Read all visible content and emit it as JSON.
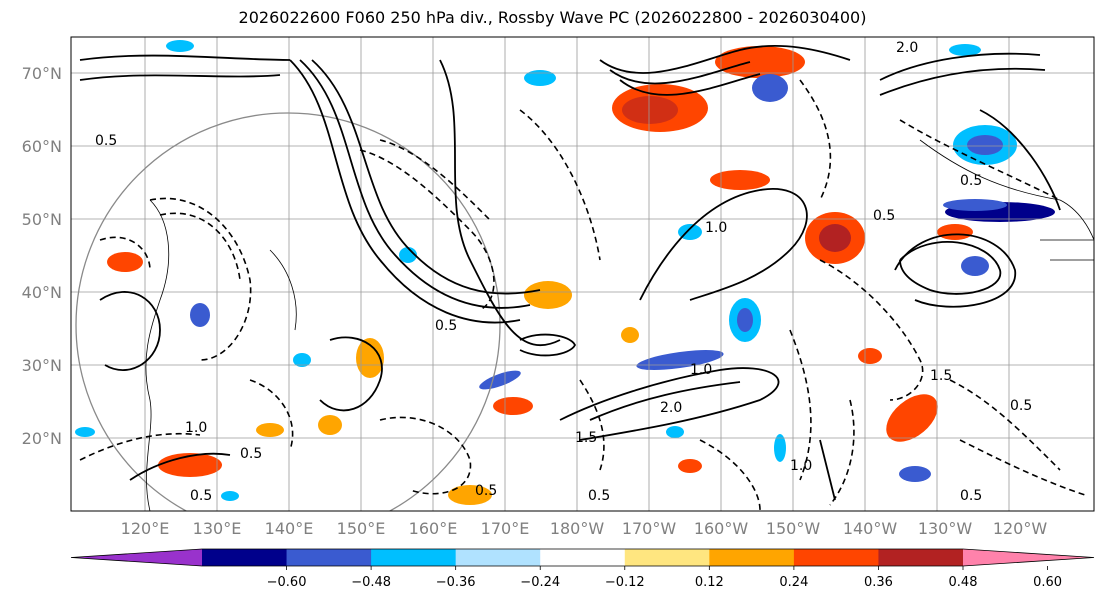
{
  "title": "2026022600 F060 250 hPa div., Rossby Wave PC (2026022800 - 2026030400)",
  "map": {
    "lat_labels": [
      "70°N",
      "60°N",
      "50°N",
      "40°N",
      "30°N",
      "20°N"
    ],
    "lon_labels": [
      "120°E",
      "130°E",
      "140°E",
      "150°E",
      "160°E",
      "170°E",
      "180°W",
      "170°W",
      "160°W",
      "150°W",
      "140°W",
      "130°W",
      "120°W"
    ],
    "contour_labels": [
      "2.0",
      "0.5",
      "1.0",
      "0.5",
      "0.5",
      "1.5",
      "2.0",
      "0.5",
      "0.5",
      "1.0",
      "1.5",
      "0.5",
      "1.0",
      "0.5",
      "0.5",
      "0.5",
      "0.5",
      "1.0"
    ]
  },
  "colorbar": {
    "colors": [
      "#9932cc",
      "#00008b",
      "#3a5bd0",
      "#00bfff",
      "#b0e2ff",
      "#ffffff",
      "#ffe680",
      "#ffa500",
      "#ff4500",
      "#b22222",
      "#ff82ab"
    ],
    "ticks": [
      "−0.60",
      "−0.48",
      "−0.36",
      "−0.24",
      "−0.12",
      "0.12",
      "0.24",
      "0.36",
      "0.48",
      "0.60"
    ]
  }
}
